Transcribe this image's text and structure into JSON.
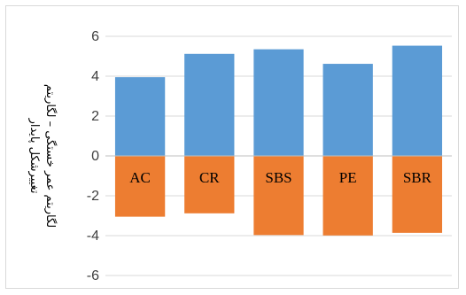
{
  "chart_data": {
    "type": "bar",
    "stacked": true,
    "categories": [
      "AC",
      "CR",
      "SBS",
      "PE",
      "SBR"
    ],
    "series": [
      {
        "values": [
          3.95,
          5.12,
          5.35,
          4.62,
          5.53
        ],
        "color": "#5b9bd5"
      },
      {
        "values": [
          -3.05,
          -2.88,
          -3.97,
          -3.99,
          -3.86
        ],
        "color": "#ed7d31"
      }
    ],
    "ylabel_line1": "لگاریتم عمر خستگی – لگاریتم",
    "ylabel_line2": "تغییرشکل پایدار",
    "ylim": [
      -6,
      6
    ],
    "yticks": [
      6,
      4,
      2,
      0,
      -2,
      -4,
      -6
    ],
    "grid": true,
    "legend": "none"
  }
}
